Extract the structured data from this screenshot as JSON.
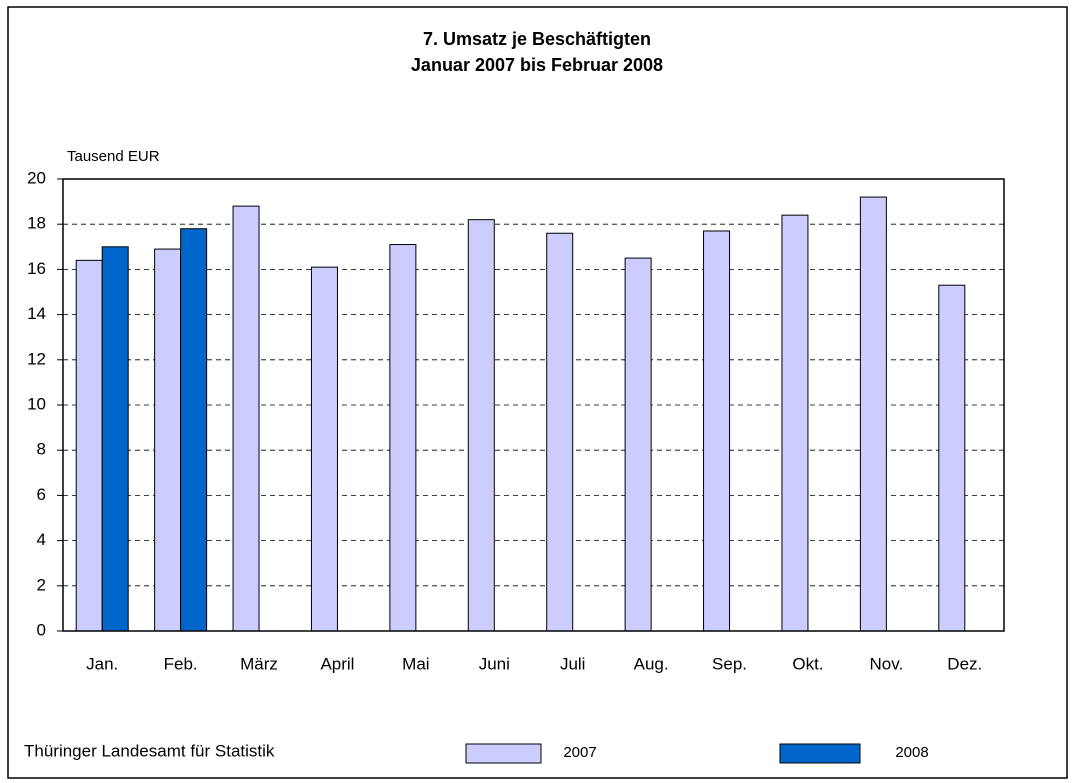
{
  "chart_data": {
    "type": "bar",
    "title": "7. Umsatz je Beschäftigten",
    "subtitle": "Januar 2007 bis Februar 2008",
    "y_label": "Tausend EUR",
    "source": "Thüringer Landesamt für Statistik",
    "categories": [
      "Jan.",
      "Feb.",
      "März",
      "April",
      "Mai",
      "Juni",
      "Juli",
      "Aug.",
      "Sep.",
      "Okt.",
      "Nov.",
      "Dez."
    ],
    "series": [
      {
        "name": "2007",
        "color": "#ccccff",
        "values": [
          16.4,
          16.9,
          18.8,
          16.1,
          17.1,
          18.2,
          17.6,
          16.5,
          17.7,
          18.4,
          19.2,
          15.3
        ]
      },
      {
        "name": "2008",
        "color": "#0066cc",
        "values": [
          17.0,
          17.8,
          null,
          null,
          null,
          null,
          null,
          null,
          null,
          null,
          null,
          null
        ]
      }
    ],
    "ylim": [
      0,
      20
    ],
    "yticks": [
      0,
      2,
      4,
      6,
      8,
      10,
      12,
      14,
      16,
      18,
      20
    ],
    "grid": true
  }
}
